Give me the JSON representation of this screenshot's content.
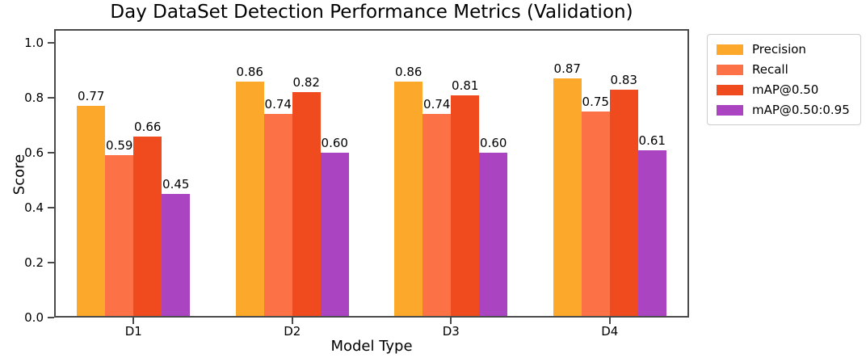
{
  "chart_data": {
    "type": "bar",
    "title": "Day DataSet Detection Performance Metrics (Validation)",
    "xlabel": "Model Type",
    "ylabel": "Score",
    "categories": [
      "D1",
      "D2",
      "D3",
      "D4"
    ],
    "series": [
      {
        "name": "Precision",
        "color": "#fca92b",
        "values": [
          0.77,
          0.86,
          0.86,
          0.87
        ]
      },
      {
        "name": "Recall",
        "color": "#fc7246",
        "values": [
          0.59,
          0.74,
          0.74,
          0.75
        ]
      },
      {
        "name": "mAP@0.50",
        "color": "#f04a1f",
        "values": [
          0.66,
          0.82,
          0.81,
          0.83
        ]
      },
      {
        "name": "mAP@0.50:0.95",
        "color": "#ab44c1",
        "values": [
          0.45,
          0.6,
          0.6,
          0.61
        ]
      }
    ],
    "ylim": [
      0.0,
      1.05
    ],
    "yticks": [
      "0.0",
      "0.2",
      "0.4",
      "0.6",
      "0.8",
      "1.0"
    ],
    "grid": false,
    "legend_position": "outside-right",
    "bar_value_label_decimals": 2,
    "background": "#ffffff",
    "axis_color": "#4a4a4a"
  }
}
